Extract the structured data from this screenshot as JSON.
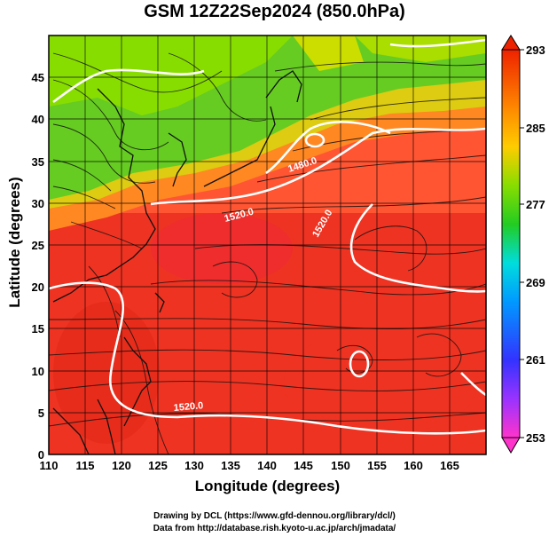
{
  "title": "GSM 12Z22Sep2024 (850.0hPa)",
  "xlabel": "Longitude (degrees)",
  "ylabel": "Latitude  (degrees)",
  "x_ticks": [
    "110",
    "115",
    "120",
    "125",
    "130",
    "135",
    "140",
    "145",
    "150",
    "155",
    "160",
    "165"
  ],
  "y_ticks": [
    "0",
    "5",
    "10",
    "15",
    "20",
    "25",
    "30",
    "35",
    "40",
    "45"
  ],
  "colorbar_labels": [
    "293",
    "285",
    "277",
    "269",
    "261",
    "253"
  ],
  "contour_labels": [
    "1480.0",
    "1520.0",
    "1520.0",
    "1520.0"
  ],
  "credits": {
    "line1": "Drawing by DCL (https://www.gfd-dennou.org/library/dcl/)",
    "line2": "Data from http://database.rish.kyoto-u.ac.jp/arch/jmadata/"
  },
  "chart_data": {
    "type": "heatmap",
    "variable": "temperature with geopotential height contours and streamlines",
    "x_range": [
      110,
      170
    ],
    "y_range": [
      0,
      50
    ],
    "colorbar_range": [
      253,
      293
    ],
    "colormap": [
      "#ff33cc",
      "#9933ff",
      "#3333ff",
      "#0099ff",
      "#00dddd",
      "#33cc33",
      "#99dd00",
      "#ffcc00",
      "#ff8800",
      "#ff3300",
      "#ee2222"
    ]
  }
}
